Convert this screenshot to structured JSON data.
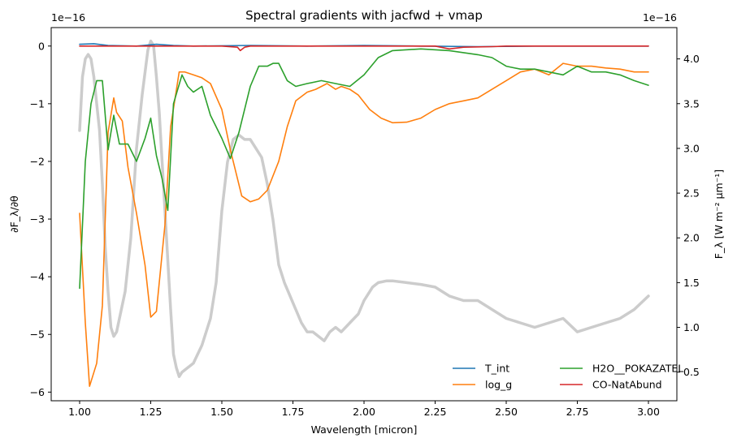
{
  "chart_data": {
    "type": "line",
    "title": "Spectral gradients with jacfwd + vmap",
    "xlabel": "Wavelength [micron]",
    "ylabel_left": "∂F_λ/∂θ",
    "ylabel_right": "F_λ [W m⁻² μm⁻¹]",
    "left_offset": "1e−16",
    "right_offset": "1e−16",
    "xlim": [
      0.9,
      3.1
    ],
    "ylim_left": [
      -6.15,
      0.32
    ],
    "ylim_right": [
      0.18,
      4.35
    ],
    "xticks": [
      "1.00",
      "1.25",
      "1.50",
      "1.75",
      "2.00",
      "2.25",
      "2.50",
      "2.75",
      "3.00"
    ],
    "yticks_left": [
      "0",
      "−1",
      "−2",
      "−3",
      "−4",
      "−5",
      "−6"
    ],
    "yticks_right": [
      "0.5",
      "1.0",
      "1.5",
      "2.0",
      "2.5",
      "3.0",
      "3.5",
      "4.0"
    ],
    "grid": false,
    "legend_position": "lower-right",
    "series": [
      {
        "name": "T_int",
        "color": "#1f77b4",
        "axis": "left",
        "x": [
          1.0,
          1.05,
          1.1,
          1.2,
          1.27,
          1.33,
          1.4,
          1.6,
          1.8,
          2.0,
          2.2,
          2.4,
          2.6,
          3.0
        ],
        "y": [
          0.03,
          0.04,
          0.01,
          0.0,
          0.03,
          0.01,
          0.0,
          0.01,
          0.0,
          0.01,
          0.0,
          -0.01,
          0.0,
          0.0
        ]
      },
      {
        "name": "log_g",
        "color": "#ff7f0e",
        "axis": "left",
        "x": [
          1.0,
          1.02,
          1.035,
          1.06,
          1.08,
          1.1,
          1.12,
          1.13,
          1.15,
          1.17,
          1.2,
          1.23,
          1.25,
          1.27,
          1.3,
          1.32,
          1.35,
          1.37,
          1.4,
          1.43,
          1.46,
          1.5,
          1.53,
          1.57,
          1.6,
          1.63,
          1.66,
          1.7,
          1.73,
          1.76,
          1.8,
          1.83,
          1.87,
          1.9,
          1.92,
          1.95,
          1.98,
          2.02,
          2.06,
          2.1,
          2.15,
          2.2,
          2.25,
          2.3,
          2.35,
          2.4,
          2.45,
          2.5,
          2.55,
          2.6,
          2.65,
          2.7,
          2.75,
          2.8,
          2.85,
          2.9,
          2.95,
          3.0
        ],
        "y": [
          -2.9,
          -4.8,
          -5.9,
          -5.5,
          -4.5,
          -1.5,
          -0.9,
          -1.15,
          -1.3,
          -2.1,
          -2.9,
          -3.8,
          -4.7,
          -4.6,
          -3.1,
          -1.4,
          -0.45,
          -0.45,
          -0.5,
          -0.55,
          -0.65,
          -1.1,
          -1.8,
          -2.6,
          -2.7,
          -2.65,
          -2.5,
          -2.0,
          -1.4,
          -0.95,
          -0.8,
          -0.75,
          -0.65,
          -0.75,
          -0.7,
          -0.75,
          -0.85,
          -1.1,
          -1.25,
          -1.33,
          -1.32,
          -1.25,
          -1.1,
          -1.0,
          -0.95,
          -0.9,
          -0.75,
          -0.6,
          -0.45,
          -0.4,
          -0.5,
          -0.3,
          -0.35,
          -0.35,
          -0.38,
          -0.4,
          -0.45,
          -0.45
        ]
      },
      {
        "name": "H2O__POKAZATEL",
        "color": "#2ca02c",
        "axis": "left",
        "x": [
          1.0,
          1.02,
          1.04,
          1.06,
          1.08,
          1.1,
          1.12,
          1.14,
          1.17,
          1.2,
          1.23,
          1.25,
          1.27,
          1.29,
          1.31,
          1.33,
          1.36,
          1.38,
          1.4,
          1.43,
          1.46,
          1.5,
          1.53,
          1.56,
          1.6,
          1.63,
          1.66,
          1.68,
          1.7,
          1.73,
          1.76,
          1.8,
          1.85,
          1.9,
          1.95,
          2.0,
          2.05,
          2.1,
          2.2,
          2.3,
          2.4,
          2.45,
          2.5,
          2.55,
          2.6,
          2.65,
          2.7,
          2.75,
          2.8,
          2.85,
          2.9,
          2.95,
          3.0
        ],
        "y": [
          -4.2,
          -2.0,
          -1.0,
          -0.6,
          -0.6,
          -1.8,
          -1.2,
          -1.7,
          -1.7,
          -2.0,
          -1.6,
          -1.25,
          -1.9,
          -2.3,
          -2.85,
          -1.0,
          -0.5,
          -0.7,
          -0.8,
          -0.7,
          -1.2,
          -1.6,
          -1.95,
          -1.5,
          -0.7,
          -0.35,
          -0.35,
          -0.3,
          -0.3,
          -0.6,
          -0.7,
          -0.65,
          -0.6,
          -0.65,
          -0.7,
          -0.5,
          -0.2,
          -0.08,
          -0.05,
          -0.08,
          -0.15,
          -0.2,
          -0.35,
          -0.4,
          -0.4,
          -0.45,
          -0.5,
          -0.35,
          -0.45,
          -0.45,
          -0.5,
          -0.6,
          -0.68
        ]
      },
      {
        "name": "CO-NatAbund",
        "color": "#d62728",
        "axis": "left",
        "x": [
          1.0,
          1.4,
          1.5,
          1.555,
          1.565,
          1.58,
          1.6,
          1.7,
          2.0,
          2.25,
          2.3,
          2.35,
          2.45,
          2.5,
          3.0
        ],
        "y": [
          0.0,
          0.0,
          0.0,
          -0.02,
          -0.08,
          -0.02,
          0.0,
          0.0,
          0.0,
          0.0,
          -0.05,
          -0.02,
          -0.01,
          0.0,
          0.0
        ]
      },
      {
        "name": "",
        "color": "#cccccc",
        "axis": "right",
        "x": [
          1.0,
          1.01,
          1.02,
          1.03,
          1.04,
          1.05,
          1.06,
          1.07,
          1.08,
          1.09,
          1.1,
          1.11,
          1.12,
          1.13,
          1.14,
          1.15,
          1.16,
          1.18,
          1.2,
          1.22,
          1.24,
          1.25,
          1.26,
          1.27,
          1.28,
          1.3,
          1.32,
          1.33,
          1.34,
          1.35,
          1.36,
          1.38,
          1.4,
          1.43,
          1.46,
          1.48,
          1.5,
          1.52,
          1.54,
          1.56,
          1.58,
          1.6,
          1.62,
          1.64,
          1.66,
          1.68,
          1.7,
          1.72,
          1.74,
          1.76,
          1.78,
          1.8,
          1.82,
          1.84,
          1.86,
          1.88,
          1.9,
          1.92,
          1.95,
          1.98,
          2.0,
          2.03,
          2.05,
          2.08,
          2.1,
          2.15,
          2.2,
          2.25,
          2.3,
          2.35,
          2.4,
          2.45,
          2.5,
          2.55,
          2.6,
          2.65,
          2.7,
          2.75,
          2.8,
          2.85,
          2.9,
          2.95,
          3.0
        ],
        "y": [
          3.2,
          3.8,
          4.0,
          4.05,
          4.0,
          3.8,
          3.5,
          3.2,
          2.6,
          1.9,
          1.4,
          1.0,
          0.9,
          0.95,
          1.1,
          1.25,
          1.4,
          2.0,
          3.0,
          3.6,
          4.1,
          4.2,
          4.15,
          3.8,
          3.4,
          2.3,
          1.2,
          0.7,
          0.55,
          0.45,
          0.5,
          0.55,
          0.6,
          0.8,
          1.1,
          1.5,
          2.3,
          2.85,
          3.1,
          3.15,
          3.1,
          3.1,
          3.0,
          2.9,
          2.6,
          2.2,
          1.7,
          1.5,
          1.35,
          1.2,
          1.05,
          0.95,
          0.95,
          0.9,
          0.85,
          0.95,
          1.0,
          0.95,
          1.05,
          1.15,
          1.3,
          1.45,
          1.5,
          1.52,
          1.52,
          1.5,
          1.48,
          1.45,
          1.35,
          1.3,
          1.3,
          1.2,
          1.1,
          1.05,
          1.0,
          1.05,
          1.1,
          0.95,
          1.0,
          1.05,
          1.1,
          1.2,
          1.35
        ]
      }
    ]
  }
}
